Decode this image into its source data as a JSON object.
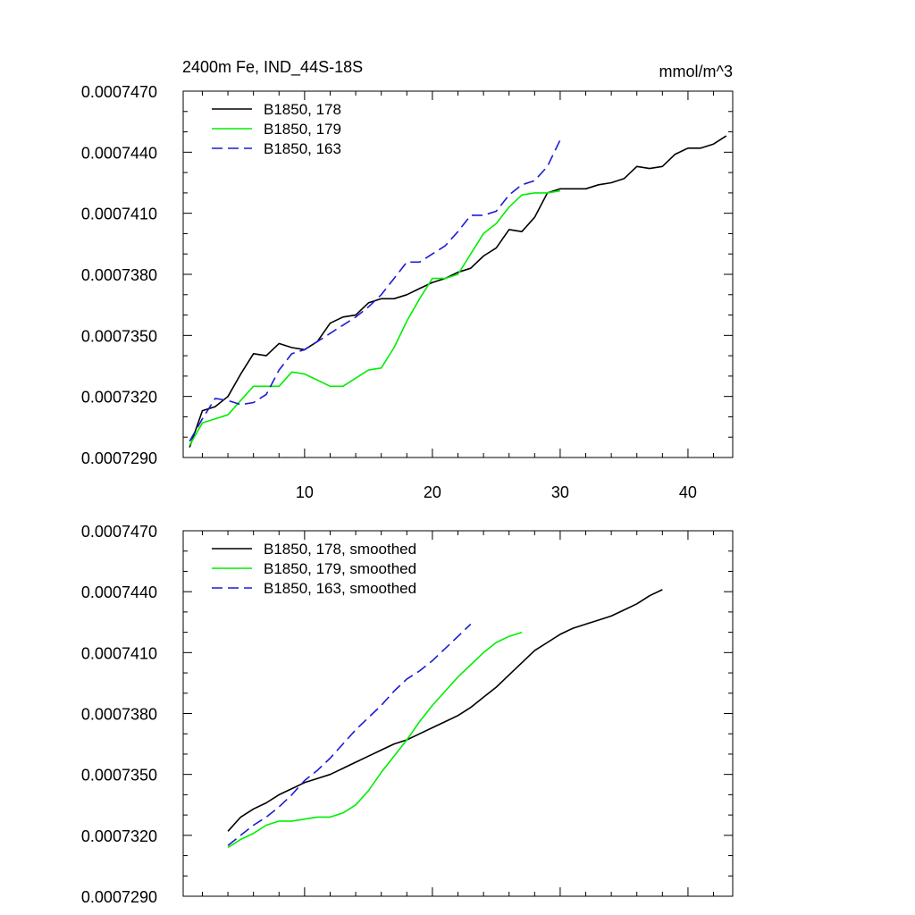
{
  "colors": {
    "c178": "#000000",
    "c179": "#00ee00",
    "c163": "#1c1cd6"
  },
  "chart_data": [
    {
      "type": "line",
      "title": "2400m Fe, IND_44S-18S",
      "units": "mmol/m^3",
      "xlabel": "",
      "ylabel": "",
      "xlim": [
        0.5,
        43.5
      ],
      "ylim": [
        0.000729,
        0.000747
      ],
      "x_ticks": [
        10,
        20,
        30,
        40
      ],
      "x_tick_labels": [
        "10",
        "20",
        "30",
        "40"
      ],
      "y_ticks": [
        0.000729,
        0.000732,
        0.000735,
        0.000738,
        0.000741,
        0.000744,
        0.000747
      ],
      "y_tick_labels": [
        "0.0007290",
        "0.0007320",
        "0.0007350",
        "0.0007380",
        "0.0007410",
        "0.0007440",
        "0.0007470"
      ],
      "legend_position": "top-left",
      "series": [
        {
          "name": "B1850, 178",
          "color_key": "c178",
          "dash": "solid",
          "x_start": 1,
          "values": [
            0.0007295,
            0.0007313,
            0.0007315,
            0.000732,
            0.0007331,
            0.0007341,
            0.000734,
            0.0007346,
            0.0007344,
            0.0007343,
            0.0007347,
            0.0007356,
            0.0007359,
            0.000736,
            0.0007366,
            0.0007368,
            0.0007368,
            0.000737,
            0.0007373,
            0.0007376,
            0.0007378,
            0.0007381,
            0.0007383,
            0.0007389,
            0.0007393,
            0.0007402,
            0.0007401,
            0.0007408,
            0.000742,
            0.0007422,
            0.0007422,
            0.0007422,
            0.0007424,
            0.0007425,
            0.0007427,
            0.0007433,
            0.0007432,
            0.0007433,
            0.0007439,
            0.0007442,
            0.0007442,
            0.0007444,
            0.0007448
          ]
        },
        {
          "name": "B1850, 179",
          "color_key": "c179",
          "dash": "solid",
          "x_start": 1,
          "values": [
            0.0007296,
            0.0007307,
            0.0007309,
            0.0007311,
            0.0007318,
            0.0007325,
            0.0007325,
            0.0007325,
            0.0007332,
            0.0007331,
            0.0007328,
            0.0007325,
            0.0007325,
            0.0007329,
            0.0007333,
            0.0007334,
            0.0007344,
            0.0007357,
            0.0007368,
            0.0007378,
            0.0007378,
            0.000738,
            0.000739,
            0.00074,
            0.0007405,
            0.0007413,
            0.0007419,
            0.000742,
            0.000742,
            0.0007421
          ]
        },
        {
          "name": "B1850, 163",
          "color_key": "c163",
          "dash": "dashed",
          "x_start": 1,
          "values": [
            0.0007298,
            0.0007309,
            0.0007319,
            0.0007318,
            0.0007316,
            0.0007317,
            0.0007321,
            0.0007333,
            0.0007341,
            0.0007343,
            0.0007347,
            0.0007351,
            0.0007355,
            0.0007359,
            0.0007364,
            0.000737,
            0.0007378,
            0.0007386,
            0.0007386,
            0.000739,
            0.0007394,
            0.0007401,
            0.0007409,
            0.0007409,
            0.0007411,
            0.0007419,
            0.0007424,
            0.0007426,
            0.0007433,
            0.0007446
          ]
        }
      ]
    },
    {
      "type": "line",
      "title": "",
      "xlabel": "",
      "ylabel": "",
      "xlim": [
        0.5,
        43.5
      ],
      "ylim": [
        0.000729,
        0.000747
      ],
      "x_ticks": [
        10,
        20,
        30,
        40
      ],
      "x_tick_labels": [],
      "y_ticks": [
        0.000729,
        0.000732,
        0.000735,
        0.000738,
        0.000741,
        0.000744,
        0.000747
      ],
      "y_tick_labels": [
        "0.0007290",
        "0.0007320",
        "0.0007350",
        "0.0007380",
        "0.0007410",
        "0.0007440",
        "0.0007470"
      ],
      "legend_position": "top-left",
      "series": [
        {
          "name": "B1850, 178, smoothed",
          "color_key": "c178",
          "dash": "solid",
          "x_start": 4,
          "values": [
            0.0007322,
            0.0007329,
            0.0007333,
            0.0007336,
            0.000734,
            0.0007343,
            0.0007346,
            0.0007348,
            0.000735,
            0.0007353,
            0.0007356,
            0.0007359,
            0.0007362,
            0.0007365,
            0.0007367,
            0.000737,
            0.0007373,
            0.0007376,
            0.0007379,
            0.0007383,
            0.0007388,
            0.0007393,
            0.0007399,
            0.0007405,
            0.0007411,
            0.0007415,
            0.0007419,
            0.0007422,
            0.0007424,
            0.0007426,
            0.0007428,
            0.0007431,
            0.0007434,
            0.0007438,
            0.0007441
          ]
        },
        {
          "name": "B1850, 179, smoothed",
          "color_key": "c179",
          "dash": "solid",
          "x_start": 4,
          "values": [
            0.0007314,
            0.0007318,
            0.0007321,
            0.0007325,
            0.0007327,
            0.0007327,
            0.0007328,
            0.0007329,
            0.0007329,
            0.0007331,
            0.0007335,
            0.0007342,
            0.0007351,
            0.0007359,
            0.0007367,
            0.0007376,
            0.0007384,
            0.0007391,
            0.0007398,
            0.0007404,
            0.000741,
            0.0007415,
            0.0007418,
            0.000742
          ]
        },
        {
          "name": "B1850, 163, smoothed",
          "color_key": "c163",
          "dash": "dashed",
          "x_start": 4,
          "values": [
            0.0007315,
            0.000732,
            0.0007325,
            0.0007329,
            0.0007334,
            0.000734,
            0.0007347,
            0.0007352,
            0.0007358,
            0.0007365,
            0.0007372,
            0.0007378,
            0.0007384,
            0.0007391,
            0.0007397,
            0.0007401,
            0.0007406,
            0.0007412,
            0.0007418,
            0.0007424
          ]
        }
      ]
    }
  ]
}
